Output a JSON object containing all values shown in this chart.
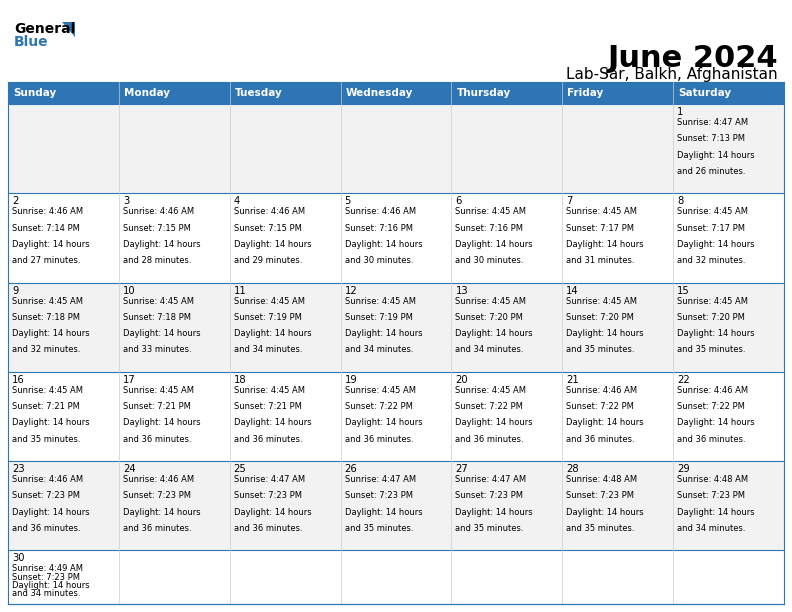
{
  "title": "June 2024",
  "subtitle": "Lab-Sar, Balkh, Afghanistan",
  "days_of_week": [
    "Sunday",
    "Monday",
    "Tuesday",
    "Wednesday",
    "Thursday",
    "Friday",
    "Saturday"
  ],
  "header_bg": "#2E75B6",
  "header_text": "#FFFFFF",
  "row_bg": [
    "#F2F2F2",
    "#FFFFFF",
    "#F2F2F2",
    "#FFFFFF",
    "#F2F2F2",
    "#FFFFFF"
  ],
  "border_color": "#2E75B6",
  "text_color": "#000000",
  "calendar": [
    [
      null,
      null,
      null,
      null,
      null,
      null,
      {
        "day": "1",
        "sunrise": "4:47 AM",
        "sunset": "7:13 PM",
        "dl1": "14 hours",
        "dl2": "and 26 minutes."
      }
    ],
    [
      {
        "day": "2",
        "sunrise": "4:46 AM",
        "sunset": "7:14 PM",
        "dl1": "14 hours",
        "dl2": "and 27 minutes."
      },
      {
        "day": "3",
        "sunrise": "4:46 AM",
        "sunset": "7:15 PM",
        "dl1": "14 hours",
        "dl2": "and 28 minutes."
      },
      {
        "day": "4",
        "sunrise": "4:46 AM",
        "sunset": "7:15 PM",
        "dl1": "14 hours",
        "dl2": "and 29 minutes."
      },
      {
        "day": "5",
        "sunrise": "4:46 AM",
        "sunset": "7:16 PM",
        "dl1": "14 hours",
        "dl2": "and 30 minutes."
      },
      {
        "day": "6",
        "sunrise": "4:45 AM",
        "sunset": "7:16 PM",
        "dl1": "14 hours",
        "dl2": "and 30 minutes."
      },
      {
        "day": "7",
        "sunrise": "4:45 AM",
        "sunset": "7:17 PM",
        "dl1": "14 hours",
        "dl2": "and 31 minutes."
      },
      {
        "day": "8",
        "sunrise": "4:45 AM",
        "sunset": "7:17 PM",
        "dl1": "14 hours",
        "dl2": "and 32 minutes."
      }
    ],
    [
      {
        "day": "9",
        "sunrise": "4:45 AM",
        "sunset": "7:18 PM",
        "dl1": "14 hours",
        "dl2": "and 32 minutes."
      },
      {
        "day": "10",
        "sunrise": "4:45 AM",
        "sunset": "7:18 PM",
        "dl1": "14 hours",
        "dl2": "and 33 minutes."
      },
      {
        "day": "11",
        "sunrise": "4:45 AM",
        "sunset": "7:19 PM",
        "dl1": "14 hours",
        "dl2": "and 34 minutes."
      },
      {
        "day": "12",
        "sunrise": "4:45 AM",
        "sunset": "7:19 PM",
        "dl1": "14 hours",
        "dl2": "and 34 minutes."
      },
      {
        "day": "13",
        "sunrise": "4:45 AM",
        "sunset": "7:20 PM",
        "dl1": "14 hours",
        "dl2": "and 34 minutes."
      },
      {
        "day": "14",
        "sunrise": "4:45 AM",
        "sunset": "7:20 PM",
        "dl1": "14 hours",
        "dl2": "and 35 minutes."
      },
      {
        "day": "15",
        "sunrise": "4:45 AM",
        "sunset": "7:20 PM",
        "dl1": "14 hours",
        "dl2": "and 35 minutes."
      }
    ],
    [
      {
        "day": "16",
        "sunrise": "4:45 AM",
        "sunset": "7:21 PM",
        "dl1": "14 hours",
        "dl2": "and 35 minutes."
      },
      {
        "day": "17",
        "sunrise": "4:45 AM",
        "sunset": "7:21 PM",
        "dl1": "14 hours",
        "dl2": "and 36 minutes."
      },
      {
        "day": "18",
        "sunrise": "4:45 AM",
        "sunset": "7:21 PM",
        "dl1": "14 hours",
        "dl2": "and 36 minutes."
      },
      {
        "day": "19",
        "sunrise": "4:45 AM",
        "sunset": "7:22 PM",
        "dl1": "14 hours",
        "dl2": "and 36 minutes."
      },
      {
        "day": "20",
        "sunrise": "4:45 AM",
        "sunset": "7:22 PM",
        "dl1": "14 hours",
        "dl2": "and 36 minutes."
      },
      {
        "day": "21",
        "sunrise": "4:46 AM",
        "sunset": "7:22 PM",
        "dl1": "14 hours",
        "dl2": "and 36 minutes."
      },
      {
        "day": "22",
        "sunrise": "4:46 AM",
        "sunset": "7:22 PM",
        "dl1": "14 hours",
        "dl2": "and 36 minutes."
      }
    ],
    [
      {
        "day": "23",
        "sunrise": "4:46 AM",
        "sunset": "7:23 PM",
        "dl1": "14 hours",
        "dl2": "and 36 minutes."
      },
      {
        "day": "24",
        "sunrise": "4:46 AM",
        "sunset": "7:23 PM",
        "dl1": "14 hours",
        "dl2": "and 36 minutes."
      },
      {
        "day": "25",
        "sunrise": "4:47 AM",
        "sunset": "7:23 PM",
        "dl1": "14 hours",
        "dl2": "and 36 minutes."
      },
      {
        "day": "26",
        "sunrise": "4:47 AM",
        "sunset": "7:23 PM",
        "dl1": "14 hours",
        "dl2": "and 35 minutes."
      },
      {
        "day": "27",
        "sunrise": "4:47 AM",
        "sunset": "7:23 PM",
        "dl1": "14 hours",
        "dl2": "and 35 minutes."
      },
      {
        "day": "28",
        "sunrise": "4:48 AM",
        "sunset": "7:23 PM",
        "dl1": "14 hours",
        "dl2": "and 35 minutes."
      },
      {
        "day": "29",
        "sunrise": "4:48 AM",
        "sunset": "7:23 PM",
        "dl1": "14 hours",
        "dl2": "and 34 minutes."
      }
    ],
    [
      {
        "day": "30",
        "sunrise": "4:49 AM",
        "sunset": "7:23 PM",
        "dl1": "14 hours",
        "dl2": "and 34 minutes."
      },
      null,
      null,
      null,
      null,
      null,
      null
    ]
  ]
}
